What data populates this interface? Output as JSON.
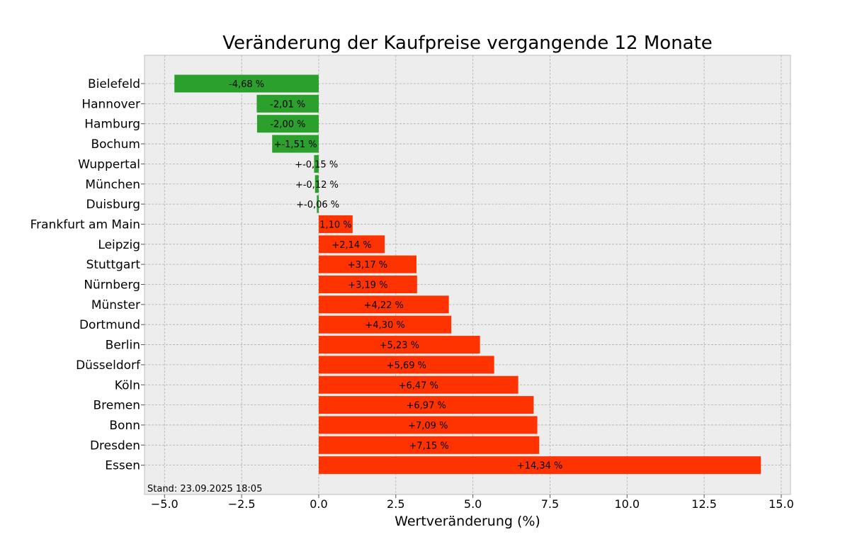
{
  "chart_data": {
    "type": "bar",
    "orientation": "horizontal",
    "title": "Veränderung der Kaufpreise vergangende 12 Monate",
    "xlabel": "Wertveränderung (%)",
    "ylabel": "",
    "xlim": [
      -5.65,
      15.3
    ],
    "xticks": [
      -5.0,
      -2.5,
      0.0,
      2.5,
      5.0,
      7.5,
      10.0,
      12.5,
      15.0
    ],
    "xtick_labels": [
      "−5.0",
      "−2.5",
      "0.0",
      "2.5",
      "5.0",
      "7.5",
      "10.0",
      "12.5",
      "15.0"
    ],
    "grid": true,
    "legend": "none",
    "footnote": "Stand: 23.09.2025 18:05",
    "colors": {
      "negative": "#2ca02c",
      "positive": "#ff3300",
      "plot_bg": "#ededed",
      "grid": "#b0b0b0"
    },
    "categories": [
      "Bielefeld",
      "Hannover",
      "Hamburg",
      "Bochum",
      "Wuppertal",
      "München",
      "Duisburg",
      "Frankfurt am Main",
      "Leipzig",
      "Stuttgart",
      "Nürnberg",
      "Münster",
      "Dortmund",
      "Berlin",
      "Düsseldorf",
      "Köln",
      "Bremen",
      "Bonn",
      "Dresden",
      "Essen"
    ],
    "values": [
      -4.68,
      -2.01,
      -2.0,
      -1.51,
      -0.15,
      -0.12,
      -0.06,
      1.1,
      2.14,
      3.17,
      3.19,
      4.22,
      4.3,
      5.23,
      5.69,
      6.47,
      6.97,
      7.09,
      7.15,
      14.34
    ],
    "value_labels": [
      "-4,68 %",
      "-2,01 %",
      "-2,00 %",
      "+-1,51 %",
      "+-0,15 %",
      "+-0,12 %",
      "+-0,06 %",
      "1,10 %",
      "+2,14 %",
      "+3,17 %",
      "+3,19 %",
      "+4,22 %",
      "+4,30 %",
      "+5,23 %",
      "+5,69 %",
      "+6,47 %",
      "+6,97 %",
      "+7,09 %",
      "+7,15 %",
      "+14,34 %"
    ]
  }
}
